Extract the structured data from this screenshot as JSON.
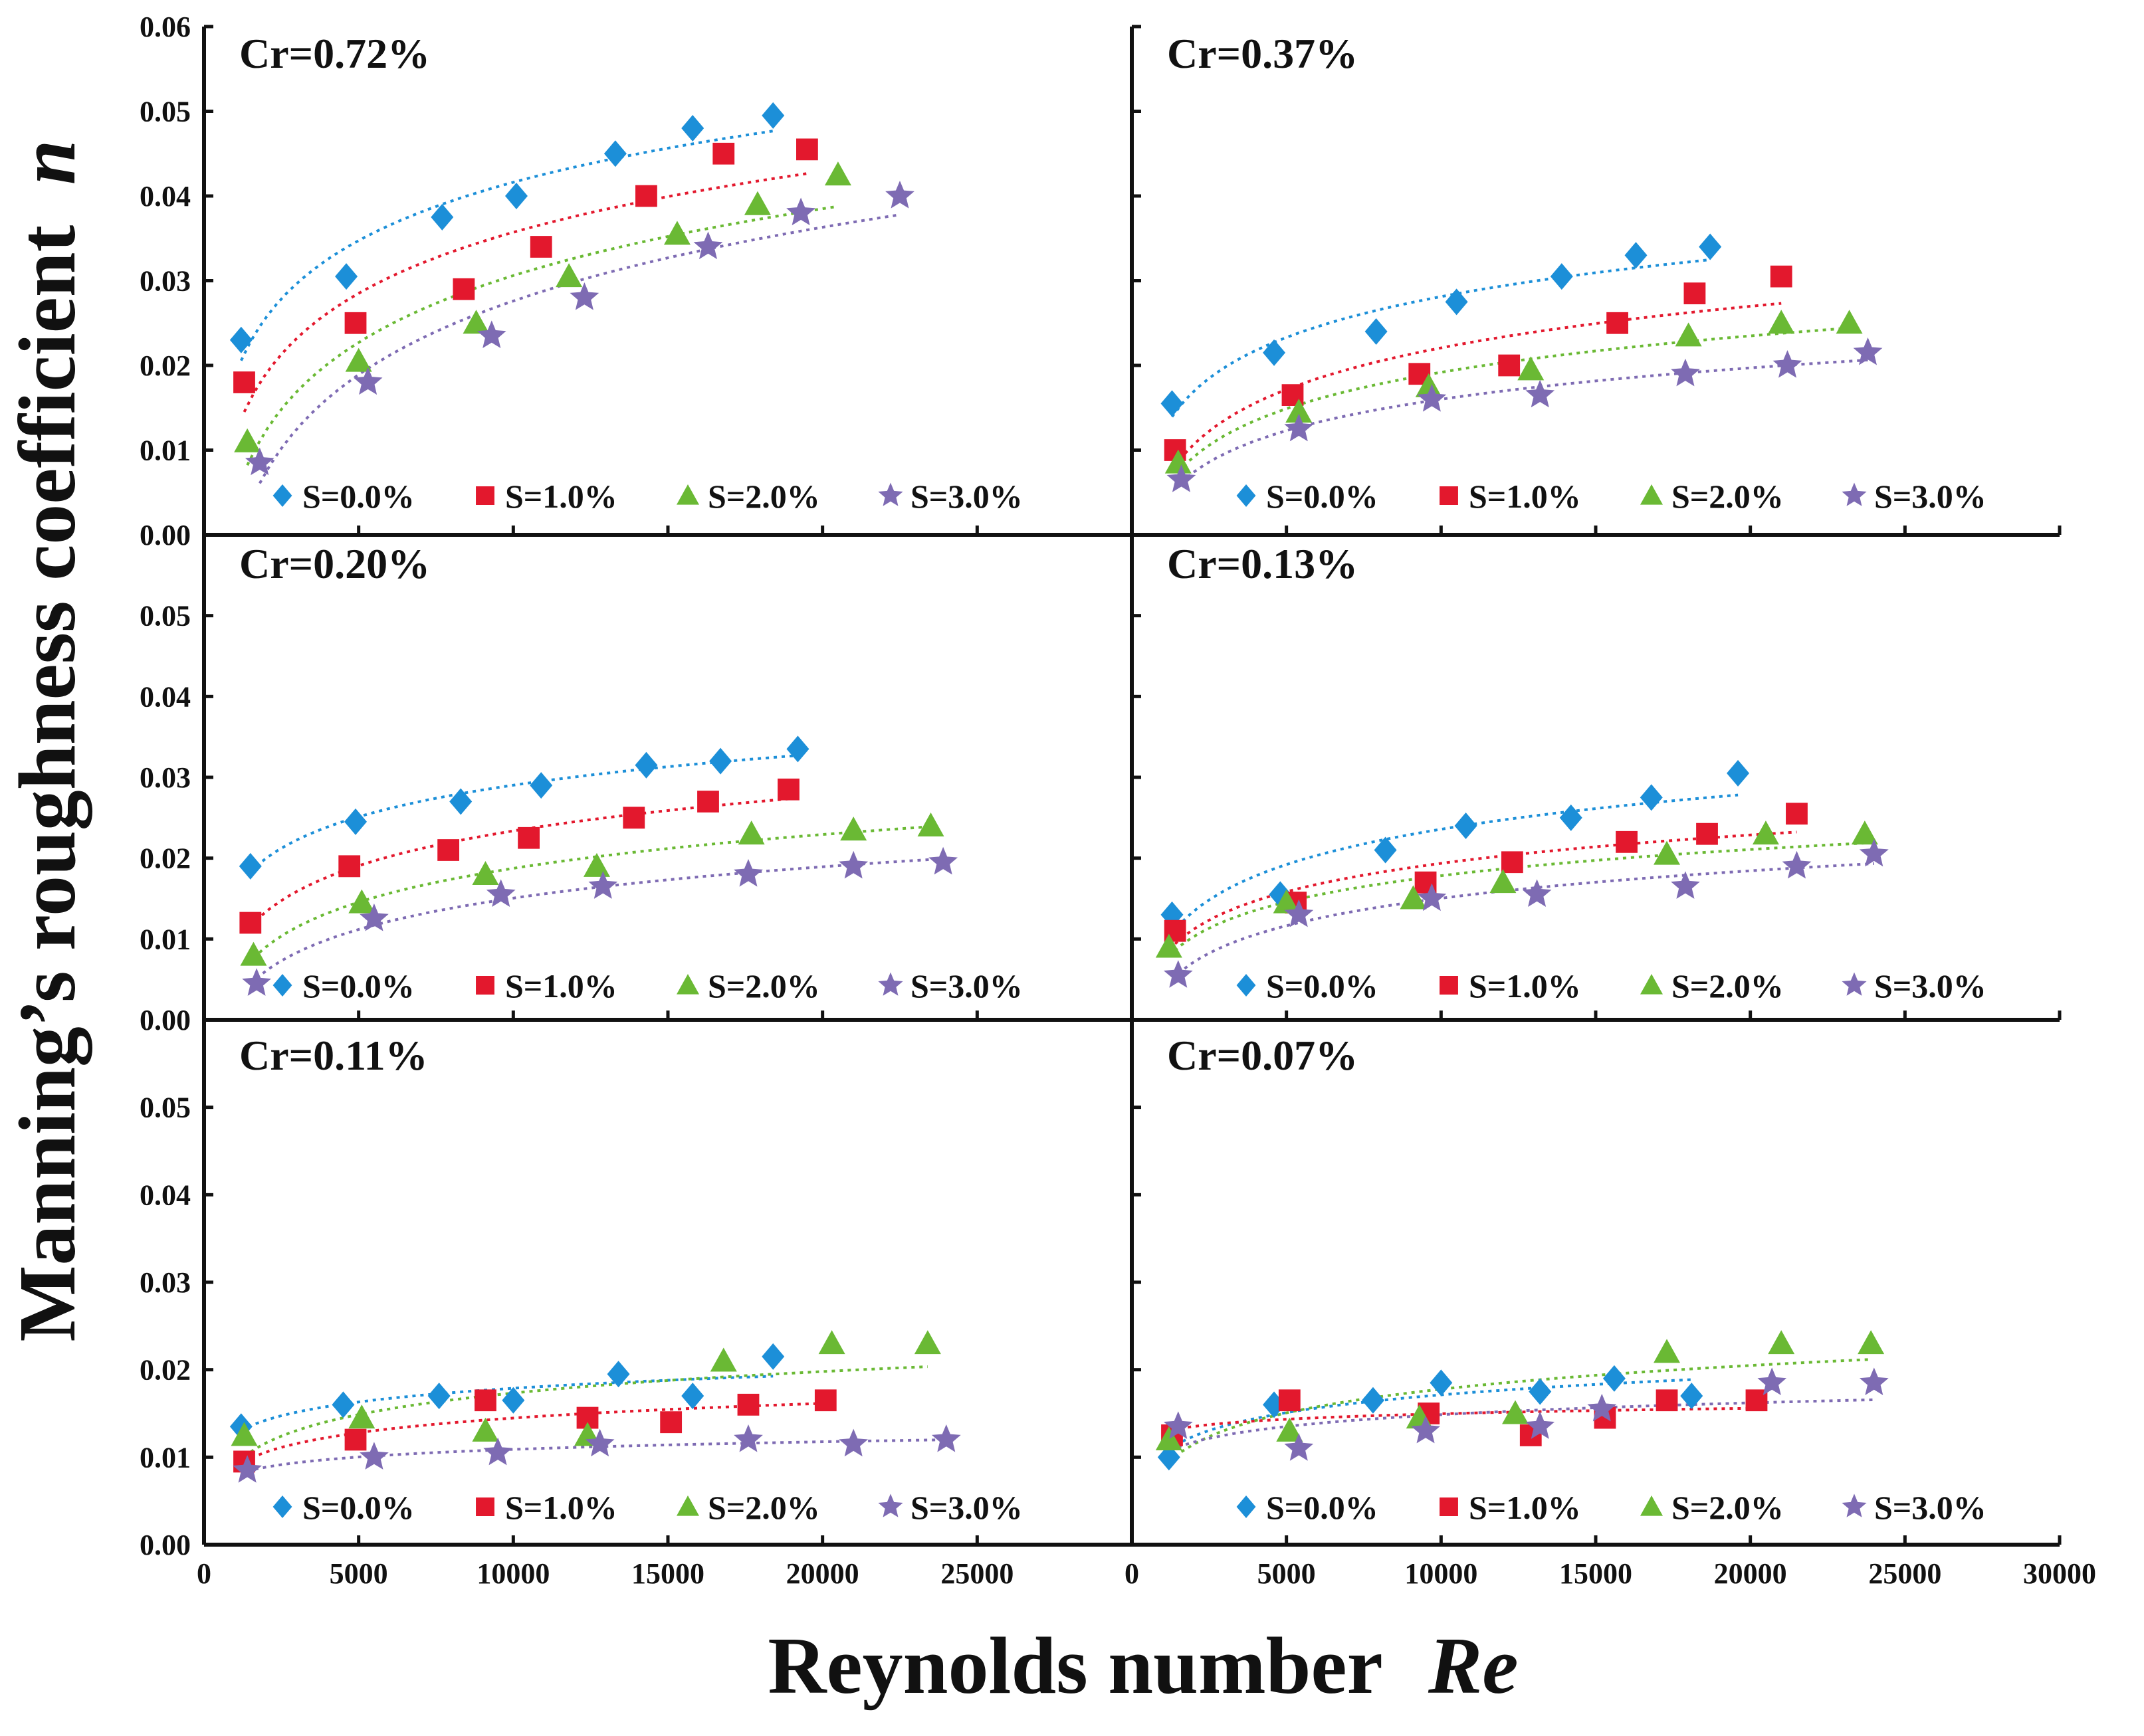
{
  "figure": {
    "xlabel": "Reynolds number",
    "xlabel_symbol": "Re",
    "ylabel": "Manning’s roughness coefficient",
    "ylabel_symbol": "n"
  },
  "series_style": [
    {
      "name": "S=0.0%",
      "color": "#1c8fd8",
      "marker": "diamond"
    },
    {
      "name": "S=1.0%",
      "color": "#e3182d",
      "marker": "square"
    },
    {
      "name": "S=2.0%",
      "color": "#6ab934",
      "marker": "triangle"
    },
    {
      "name": "S=3.0%",
      "color": "#7e6bb3",
      "marker": "star"
    }
  ],
  "axes": {
    "y_ticks": [
      "0.00",
      "0.01",
      "0.02",
      "0.03",
      "0.04",
      "0.05",
      "0.06"
    ],
    "x_ticks_left": [
      "0",
      "5000",
      "10000",
      "15000",
      "20000",
      "25000"
    ],
    "x_ticks_right": [
      "0",
      "5000",
      "10000",
      "15000",
      "20000",
      "25000",
      "30000"
    ]
  },
  "chart_data": [
    {
      "type": "scatter",
      "title": "Cr=0.72%",
      "xlim": [
        0,
        30000
      ],
      "ylim": [
        0,
        0.06
      ],
      "series": [
        {
          "name": "S=0.0%",
          "x": [
            1200,
            4600,
            7700,
            10100,
            13300,
            15800,
            18400
          ],
          "y": [
            0.023,
            0.0305,
            0.0375,
            0.04,
            0.045,
            0.048,
            0.0495
          ]
        },
        {
          "name": "S=1.0%",
          "x": [
            1300,
            4900,
            8400,
            10900,
            14300,
            16800,
            19500
          ],
          "y": [
            0.018,
            0.025,
            0.029,
            0.034,
            0.04,
            0.045,
            0.0455
          ]
        },
        {
          "name": "S=2.0%",
          "x": [
            1400,
            5000,
            8800,
            11800,
            15300,
            17900,
            20500
          ],
          "y": [
            0.011,
            0.0205,
            0.025,
            0.0305,
            0.0355,
            0.039,
            0.0425
          ]
        },
        {
          "name": "S=3.0%",
          "x": [
            1800,
            5300,
            9300,
            12300,
            16300,
            19300,
            22500
          ],
          "y": [
            0.0085,
            0.018,
            0.0235,
            0.028,
            0.034,
            0.038,
            0.04
          ]
        }
      ]
    },
    {
      "type": "scatter",
      "title": "Cr=0.37%",
      "xlim": [
        0,
        30000
      ],
      "ylim": [
        0,
        0.06
      ],
      "series": [
        {
          "name": "S=0.0%",
          "x": [
            1300,
            4600,
            7900,
            10500,
            13900,
            16300,
            18700
          ],
          "y": [
            0.0155,
            0.0215,
            0.024,
            0.0275,
            0.0305,
            0.033,
            0.034
          ]
        },
        {
          "name": "S=1.0%",
          "x": [
            1400,
            5200,
            9300,
            12200,
            15700,
            18200,
            21000
          ],
          "y": [
            0.01,
            0.0165,
            0.019,
            0.02,
            0.025,
            0.0285,
            0.0305
          ]
        },
        {
          "name": "S=2.0%",
          "x": [
            1500,
            5400,
            9600,
            12900,
            18000,
            21000,
            23200
          ],
          "y": [
            0.0085,
            0.0145,
            0.0175,
            0.0195,
            0.0235,
            0.025,
            0.025
          ]
        },
        {
          "name": "S=3.0%",
          "x": [
            1600,
            5400,
            9700,
            13200,
            17900,
            21200,
            23800
          ],
          "y": [
            0.0065,
            0.0125,
            0.016,
            0.0165,
            0.019,
            0.02,
            0.0215
          ]
        }
      ]
    },
    {
      "type": "scatter",
      "title": "Cr=0.20%",
      "xlim": [
        0,
        30000
      ],
      "ylim": [
        0,
        0.06
      ],
      "series": [
        {
          "name": "S=0.0%",
          "x": [
            1500,
            4900,
            8300,
            10900,
            14300,
            16700,
            19200
          ],
          "y": [
            0.019,
            0.0245,
            0.027,
            0.029,
            0.0315,
            0.032,
            0.0335
          ]
        },
        {
          "name": "S=1.0%",
          "x": [
            1500,
            4700,
            7900,
            10500,
            13900,
            16300,
            18900
          ],
          "y": [
            0.012,
            0.019,
            0.021,
            0.0225,
            0.025,
            0.027,
            0.0285
          ]
        },
        {
          "name": "S=2.0%",
          "x": [
            1600,
            5100,
            9100,
            12700,
            17700,
            21000,
            23500
          ],
          "y": [
            0.008,
            0.0145,
            0.018,
            0.019,
            0.023,
            0.0235,
            0.024
          ]
        },
        {
          "name": "S=3.0%",
          "x": [
            1700,
            5500,
            9600,
            12900,
            17600,
            21000,
            23900
          ],
          "y": [
            0.0045,
            0.0125,
            0.0155,
            0.0165,
            0.018,
            0.019,
            0.0195
          ]
        }
      ]
    },
    {
      "type": "scatter",
      "title": "Cr=0.13%",
      "xlim": [
        0,
        30000
      ],
      "ylim": [
        0,
        0.06
      ],
      "series": [
        {
          "name": "S=0.0%",
          "x": [
            1300,
            4800,
            8200,
            10800,
            14200,
            16800,
            19600
          ],
          "y": [
            0.013,
            0.0155,
            0.021,
            0.024,
            0.025,
            0.0275,
            0.0305
          ]
        },
        {
          "name": "S=1.0%",
          "x": [
            1400,
            5300,
            9500,
            12300,
            16000,
            18600,
            21500
          ],
          "y": [
            0.011,
            0.0145,
            0.017,
            0.0195,
            0.022,
            0.023,
            0.0255
          ]
        },
        {
          "name": "S=2.0%",
          "x": [
            1200,
            5000,
            9100,
            12000,
            17300,
            20500,
            23700
          ],
          "y": [
            0.009,
            0.0145,
            0.015,
            0.017,
            0.0205,
            0.023,
            0.023
          ]
        },
        {
          "name": "S=3.0%",
          "x": [
            1500,
            5400,
            9700,
            13100,
            17900,
            21500,
            24000
          ],
          "y": [
            0.0055,
            0.013,
            0.015,
            0.0155,
            0.0165,
            0.019,
            0.0205
          ]
        }
      ]
    },
    {
      "type": "scatter",
      "title": "Cr=0.11%",
      "xlim": [
        0,
        30000
      ],
      "ylim": [
        0,
        0.06
      ],
      "series": [
        {
          "name": "S=0.0%",
          "x": [
            1200,
            4500,
            7600,
            10000,
            13400,
            15800,
            18400
          ],
          "y": [
            0.0135,
            0.016,
            0.017,
            0.0165,
            0.0195,
            0.017,
            0.0215
          ]
        },
        {
          "name": "S=1.0%",
          "x": [
            1300,
            4900,
            9100,
            12400,
            15100,
            17600,
            20100
          ],
          "y": [
            0.0095,
            0.012,
            0.0165,
            0.0145,
            0.014,
            0.016,
            0.0165
          ]
        },
        {
          "name": "S=2.0%",
          "x": [
            1300,
            5100,
            9100,
            12400,
            16800,
            20300,
            23400
          ],
          "y": [
            0.0125,
            0.0145,
            0.013,
            0.0125,
            0.021,
            0.023,
            0.023
          ]
        },
        {
          "name": "S=3.0%",
          "x": [
            1400,
            5500,
            9500,
            12800,
            17600,
            21000,
            24000
          ],
          "y": [
            0.0085,
            0.01,
            0.0105,
            0.0115,
            0.012,
            0.0115,
            0.012
          ]
        }
      ]
    },
    {
      "type": "scatter",
      "title": "Cr=0.07%",
      "xlim": [
        0,
        30000
      ],
      "ylim": [
        0,
        0.06
      ],
      "series": [
        {
          "name": "S=0.0%",
          "x": [
            1200,
            4600,
            7800,
            10000,
            13200,
            15600,
            18100
          ],
          "y": [
            0.01,
            0.016,
            0.0165,
            0.0185,
            0.0175,
            0.019,
            0.017
          ]
        },
        {
          "name": "S=1.0%",
          "x": [
            1300,
            5100,
            9600,
            12900,
            15300,
            17300,
            20200
          ],
          "y": [
            0.0125,
            0.0165,
            0.015,
            0.0125,
            0.0145,
            0.0165,
            0.0165
          ]
        },
        {
          "name": "S=2.0%",
          "x": [
            1200,
            5100,
            9300,
            12400,
            17300,
            21000,
            23900
          ],
          "y": [
            0.012,
            0.013,
            0.0145,
            0.015,
            0.022,
            0.023,
            0.023
          ]
        },
        {
          "name": "S=3.0%",
          "x": [
            1500,
            5400,
            9500,
            13200,
            15200,
            20700,
            24000
          ],
          "y": [
            0.0135,
            0.011,
            0.013,
            0.0135,
            0.0155,
            0.0185,
            0.0185
          ]
        }
      ]
    }
  ]
}
